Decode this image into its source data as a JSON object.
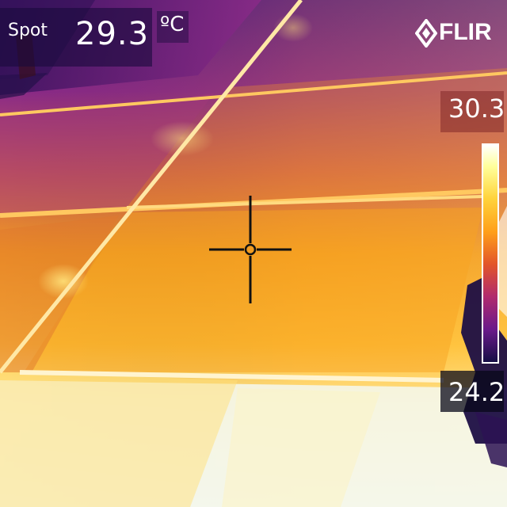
{
  "spot": {
    "label": "Spot",
    "value": "29.3",
    "unit": "ºC"
  },
  "brand": {
    "logo_text": "FLIR"
  },
  "scale": {
    "max": "30.3",
    "min": "24.2"
  },
  "colors": {
    "accent_text": "#ffffff",
    "palette_hot": "#ffffff",
    "palette_mid": "#ff9f1a",
    "palette_cold": "#160e46"
  },
  "icons": [
    "flir-logo-icon",
    "crosshair-icon"
  ]
}
